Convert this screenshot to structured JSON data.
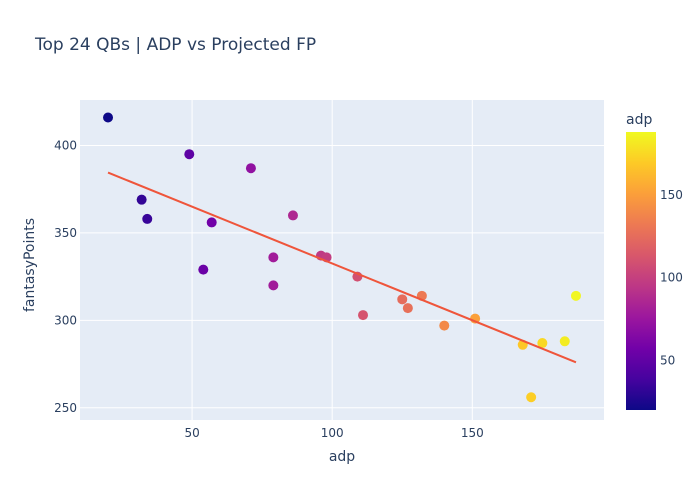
{
  "chart_data": {
    "type": "scatter",
    "title": "Top 24 QBs | ADP vs Projected FP",
    "xlabel": "adp",
    "ylabel": "fantasyPoints",
    "xlim": [
      10,
      197
    ],
    "ylim": [
      243,
      426
    ],
    "xticks": [
      50,
      100,
      150
    ],
    "yticks": [
      250,
      300,
      350,
      400
    ],
    "grid": true,
    "colorbar": {
      "title": "adp",
      "min": 20,
      "max": 188,
      "ticks": [
        50,
        100,
        150
      ]
    },
    "colorscale": [
      "#0d0887",
      "#46039f",
      "#7201a8",
      "#9c179e",
      "#bd3786",
      "#d8576b",
      "#ed7953",
      "#fb9f3a",
      "#fdca26",
      "#f0f921"
    ],
    "points": [
      {
        "x": 20,
        "y": 416
      },
      {
        "x": 32,
        "y": 369
      },
      {
        "x": 34,
        "y": 358
      },
      {
        "x": 49,
        "y": 395
      },
      {
        "x": 54,
        "y": 329
      },
      {
        "x": 57,
        "y": 356
      },
      {
        "x": 71,
        "y": 387
      },
      {
        "x": 79,
        "y": 336
      },
      {
        "x": 79,
        "y": 320
      },
      {
        "x": 86,
        "y": 360
      },
      {
        "x": 96,
        "y": 337
      },
      {
        "x": 98,
        "y": 336
      },
      {
        "x": 109,
        "y": 325
      },
      {
        "x": 111,
        "y": 303
      },
      {
        "x": 125,
        "y": 312
      },
      {
        "x": 127,
        "y": 307
      },
      {
        "x": 132,
        "y": 314
      },
      {
        "x": 140,
        "y": 297
      },
      {
        "x": 151,
        "y": 301
      },
      {
        "x": 168,
        "y": 286
      },
      {
        "x": 171,
        "y": 256
      },
      {
        "x": 175,
        "y": 287
      },
      {
        "x": 183,
        "y": 288
      },
      {
        "x": 187,
        "y": 314
      }
    ],
    "trendline": {
      "x": [
        20,
        187
      ],
      "y": [
        384.5,
        276
      ],
      "color": "#ef553b"
    }
  }
}
